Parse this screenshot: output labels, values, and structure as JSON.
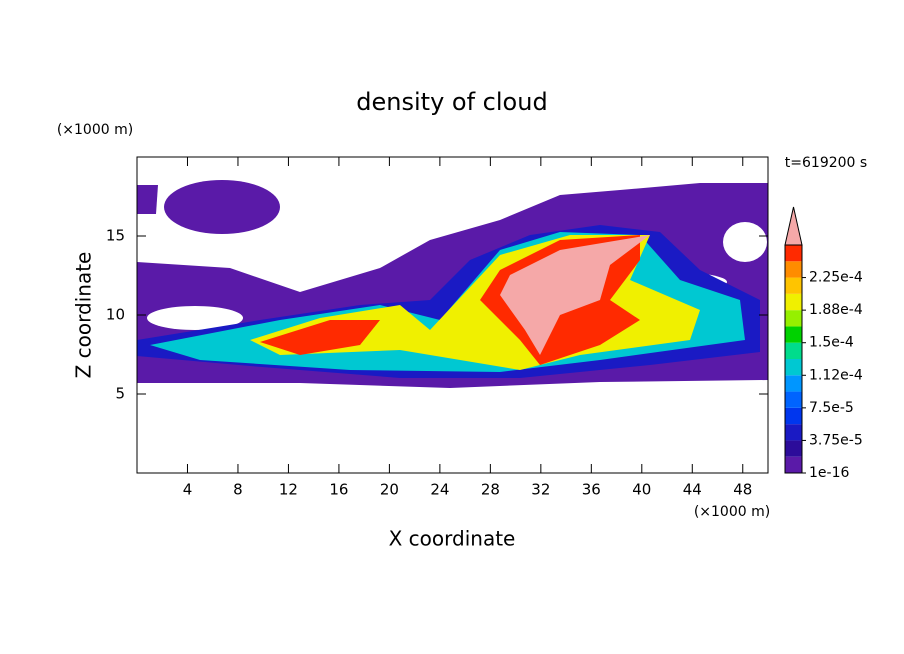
{
  "chart_data": {
    "type": "contour",
    "title": "density of cloud",
    "xlabel": "X coordinate",
    "ylabel": "Z coordinate",
    "x_unit_label": "(×1000 m)",
    "y_unit_label": "(×1000 m)",
    "time_label": "t=619200 s",
    "xlim": [
      0,
      50
    ],
    "ylim": [
      0,
      20
    ],
    "xticks": [
      4,
      8,
      12,
      16,
      20,
      24,
      28,
      32,
      36,
      40,
      44,
      48
    ],
    "yticks": [
      5,
      10,
      15
    ],
    "colorbar": {
      "colors": [
        "#5a1aa8",
        "#2c0c9a",
        "#1a1ac4",
        "#0036ee",
        "#0064ff",
        "#0096ff",
        "#00c8d2",
        "#00dc8c",
        "#00d200",
        "#96f000",
        "#f0f000",
        "#ffc400",
        "#ff8c00",
        "#ff2a00"
      ],
      "extend_color": "#f5a8a8",
      "levels": [
        {
          "value": 1e-16,
          "label": "1e-16"
        },
        {
          "value": 3.75e-05,
          "label": "3.75e-5"
        },
        {
          "value": 7.5e-05,
          "label": "7.5e-5"
        },
        {
          "value": 0.000112,
          "label": "1.12e-4"
        },
        {
          "value": 0.00015,
          "label": "1.5e-4"
        },
        {
          "value": 0.000188,
          "label": "1.88e-4"
        },
        {
          "value": 0.000225,
          "label": "2.25e-4"
        }
      ]
    }
  }
}
